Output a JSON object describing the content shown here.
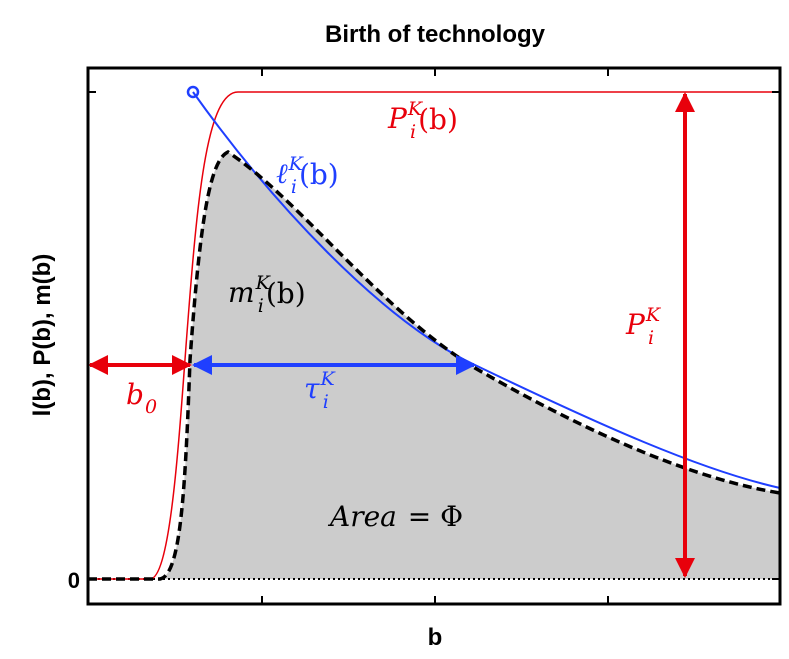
{
  "title": "Birth of technology",
  "x_label": "b",
  "y_label": "l(b), P(b), m(b)",
  "y_tick": "0",
  "annotations": [
    {
      "base": "P",
      "sub": "i",
      "sup": "K",
      "tail": "(b)"
    },
    {
      "base": "ℓ",
      "sub": "i",
      "sup": "K",
      "tail": "(b)"
    },
    {
      "base": "m",
      "sub": "i",
      "sup": "K",
      "tail": "(b)"
    },
    {
      "base": "τ",
      "sub": "i",
      "sup": "K"
    },
    {
      "base": "b",
      "sub": "0"
    },
    {
      "base": "P",
      "sub": "i",
      "sup": "K"
    },
    {
      "base": "Area",
      "tail": " = Φ"
    }
  ]
}
